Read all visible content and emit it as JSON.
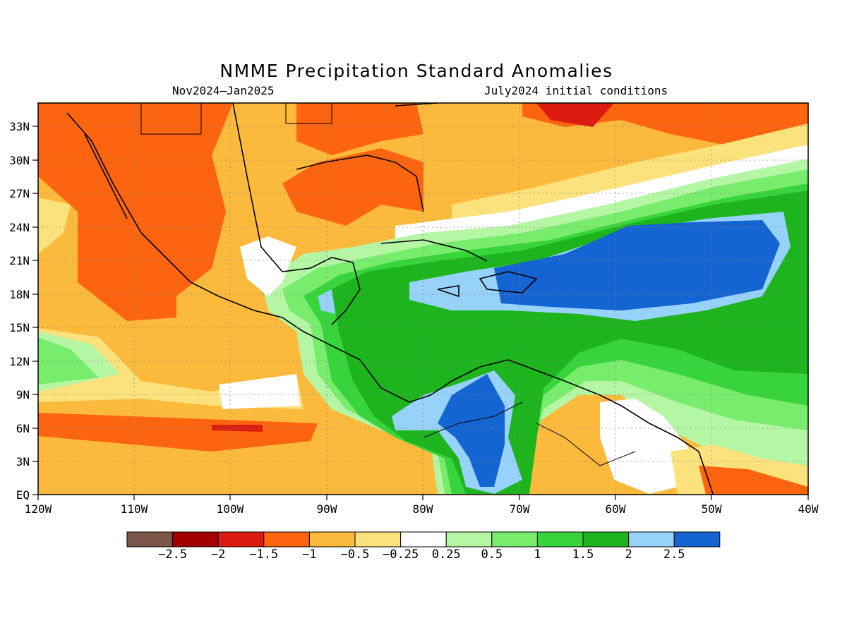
{
  "title": "NMME Precipitation Standard Anomalies",
  "subtitle_left": "Nov2024—Jan2025",
  "subtitle_right": "July2024 initial conditions",
  "lat_labels": [
    "EQ",
    "3N",
    "6N",
    "9N",
    "12N",
    "15N",
    "18N",
    "21N",
    "24N",
    "27N",
    "30N",
    "33N"
  ],
  "lon_labels": [
    "120W",
    "110W",
    "100W",
    "90W",
    "80W",
    "70W",
    "60W",
    "50W",
    "40W"
  ],
  "colorbar": {
    "colors": [
      "#7a5548",
      "#a50000",
      "#dc1c10",
      "#fc6410",
      "#fcba3c",
      "#fce27c",
      "#ffffff",
      "#b4f6a4",
      "#78ec6c",
      "#38d43c",
      "#1eb41e",
      "#96d2fa",
      "#1464d2"
    ],
    "labels": [
      "-2.5",
      "-2",
      "-1.5",
      "-1",
      "-0.5",
      "-0.25",
      "0.25",
      "0.5",
      "1",
      "1.5",
      "2",
      "2.5"
    ]
  },
  "map_colors": {
    "neg_light": "#fce27c",
    "neg_05": "#fcba3c",
    "neg_1": "#fc6410",
    "neg_15": "#dc1c10",
    "pos_025": "#b4f6a4",
    "pos_05": "#78ec6c",
    "pos_1": "#38d43c",
    "pos_15": "#1eb41e",
    "pos_2": "#96d2fa",
    "pos_25": "#1464d2"
  },
  "icons": {
    "coastline": "coastline-outline",
    "borders": "country-borders"
  }
}
